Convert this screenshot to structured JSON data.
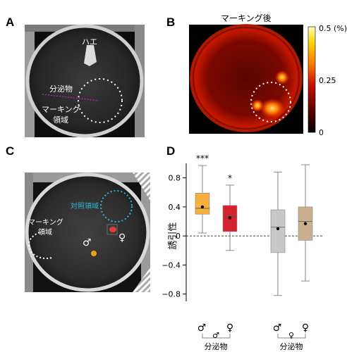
{
  "panels": {
    "A": {
      "label": "A",
      "fly_label": "ハエ",
      "secretion_label": "分泌物",
      "marking_area_label": [
        "マーキング",
        "領域"
      ]
    },
    "B": {
      "label": "B",
      "title": "マーキング後",
      "colorbar_ticks": [
        "0.5 (%)",
        "0.25",
        "0"
      ],
      "colorbar_colors": [
        "#000000",
        "#5a0000",
        "#c81200",
        "#ff7a00",
        "#ffd400",
        "#ffffb0"
      ]
    },
    "C": {
      "label": "C",
      "control_area_label": "対照領域",
      "marking_area_label": [
        "マーキング",
        "領域"
      ],
      "male_symbol": "♂",
      "female_symbol": "♀",
      "control_color": "#2fb5d8",
      "male_dot_color": "#f0a020",
      "female_dot_color": "#e0403a"
    },
    "D": {
      "label": "D",
      "ylabel": "誘引性",
      "y_ticks": [
        "0.8",
        "0.4",
        "0",
        "−0.4",
        "−0.8"
      ],
      "x_symbols": [
        "♂",
        "♀",
        "♂",
        "♀"
      ],
      "group_labels": [
        {
          "symbol": "♂",
          "text": "分泌物"
        },
        {
          "symbol": "♀",
          "text": "分泌物"
        }
      ]
    }
  },
  "chart_data": {
    "type": "box",
    "ylabel": "誘引性",
    "ylim": [
      -0.9,
      1.0
    ],
    "ticks": [
      0.8,
      0.4,
      0,
      -0.4,
      -0.8
    ],
    "reference_line": 0,
    "groups": [
      {
        "subject": "♂",
        "secretion": "♂ 分泌物",
        "color": "#f5b041",
        "whisker_low": 0.04,
        "q1": 0.3,
        "median": 0.38,
        "q3": 0.59,
        "whisker_high": 0.97,
        "mean": 0.4,
        "significance": "***"
      },
      {
        "subject": "♀",
        "secretion": "♂ 分泌物",
        "color": "#d2232f",
        "whisker_low": -0.2,
        "q1": 0.06,
        "median": 0.27,
        "q3": 0.42,
        "whisker_high": 0.7,
        "mean": 0.25,
        "significance": "*"
      },
      {
        "subject": "♂",
        "secretion": "♀ 分泌物",
        "color": "#c8c8c8",
        "whisker_low": -0.82,
        "q1": -0.23,
        "median": 0.12,
        "q3": 0.36,
        "whisker_high": 0.88,
        "mean": 0.1,
        "significance": ""
      },
      {
        "subject": "♀",
        "secretion": "♀ 分泌物",
        "color": "#c8b08e",
        "whisker_low": -0.62,
        "q1": -0.06,
        "median": 0.2,
        "q3": 0.4,
        "whisker_high": 0.98,
        "mean": 0.17,
        "significance": ""
      }
    ]
  }
}
